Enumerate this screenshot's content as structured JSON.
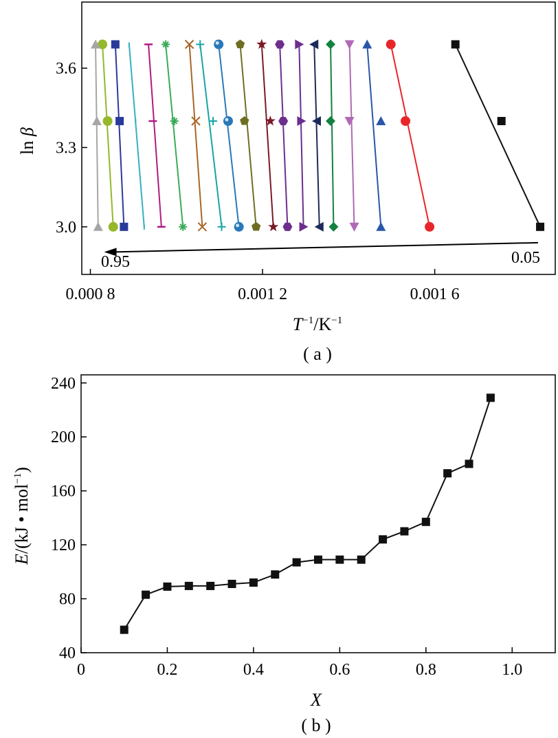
{
  "chart_data": [
    {
      "type": "line",
      "caption": "( a )",
      "xlabel": "T⁻¹/K⁻¹",
      "ylabel": "ln β",
      "x_tick_values": [
        0.0008,
        0.0012,
        0.0016
      ],
      "x_tick_labels": [
        "0.000 8",
        "0.001 2",
        "0.001 6"
      ],
      "y_tick_values": [
        3.0,
        3.3,
        3.6
      ],
      "y_tick_labels": [
        "3.0",
        "3.3",
        "3.6"
      ],
      "xlim": [
        0.00078,
        0.00188
      ],
      "ylim": [
        2.82,
        3.85
      ],
      "y_levels": [
        3.0,
        3.4,
        3.69
      ],
      "arrow": {
        "from_label": "0.05",
        "to_label": "0.95"
      },
      "series": [
        {
          "x_at_levels": [
            0.001845,
            0.001755,
            0.001648
          ],
          "color": "#111111",
          "marker": "square"
        },
        {
          "x_at_levels": [
            0.001588,
            0.001532,
            0.001498
          ],
          "color": "#e8262a",
          "marker": "circle"
        },
        {
          "x_at_levels": [
            0.001475,
            0.001475,
            0.001443
          ],
          "color": "#2a56a8",
          "marker": "triangle-up"
        },
        {
          "x_at_levels": [
            0.001413,
            0.001402,
            0.001402
          ],
          "color": "#b069b4",
          "marker": "triangle-down"
        },
        {
          "x_at_levels": [
            0.001365,
            0.001358,
            0.001358
          ],
          "color": "#12823e",
          "marker": "diamond"
        },
        {
          "x_at_levels": [
            0.001332,
            0.001326,
            0.00132
          ],
          "color": "#1c2a5a",
          "marker": "triangle-left"
        },
        {
          "x_at_levels": [
            0.001295,
            0.00129,
            0.001285
          ],
          "color": "#6a2e8e",
          "marker": "triangle-right"
        },
        {
          "x_at_levels": [
            0.001258,
            0.001248,
            0.00124
          ],
          "color": "#6d2e8c",
          "marker": "hexagon"
        },
        {
          "x_at_levels": [
            0.001225,
            0.001218,
            0.001198
          ],
          "color": "#7a1a26",
          "marker": "star"
        },
        {
          "x_at_levels": [
            0.001185,
            0.001158,
            0.001148
          ],
          "color": "#6e6e22",
          "marker": "pentagon"
        },
        {
          "x_at_levels": [
            0.001145,
            0.00112,
            0.001098
          ],
          "color": "#2a78b8",
          "marker": "sphere"
        },
        {
          "x_at_levels": [
            0.001105,
            0.001085,
            0.001055
          ],
          "color": "#17a4a4",
          "marker": "plus"
        },
        {
          "x_at_levels": [
            0.00106,
            0.001045,
            0.00103
          ],
          "color": "#a86628",
          "marker": "x"
        },
        {
          "x_at_levels": [
            0.001015,
            0.000995,
            0.000975
          ],
          "color": "#3aac58",
          "marker": "asterisk"
        },
        {
          "x_at_levels": [
            0.000965,
            0.000945,
            0.000935
          ],
          "color": "#b01a82",
          "marker": "dash"
        },
        {
          "x_at_levels": [
            0.000925,
            0.000905,
            0.00089
          ],
          "color": "#35b0c0",
          "marker": "vline"
        },
        {
          "x_at_levels": [
            0.000878,
            0.000868,
            0.000858
          ],
          "color": "#2a3a9a",
          "marker": "square"
        },
        {
          "x_at_levels": [
            0.000853,
            0.00084,
            0.000828
          ],
          "color": "#94b82a",
          "marker": "circle"
        },
        {
          "x_at_levels": [
            0.000818,
            0.000815,
            0.000812
          ],
          "color": "#a6a6a6",
          "marker": "triangle-up"
        }
      ]
    },
    {
      "type": "line",
      "caption": "( b )",
      "xlabel": "X",
      "ylabel": "E/(kJ • mol⁻¹)",
      "x_tick_values": [
        0,
        0.2,
        0.4,
        0.6,
        0.8,
        1.0
      ],
      "x_tick_labels": [
        "0",
        "0.2",
        "0.4",
        "0.6",
        "0.8",
        "1.0"
      ],
      "y_tick_values": [
        40,
        80,
        120,
        160,
        200,
        240
      ],
      "y_tick_labels": [
        "40",
        "80",
        "120",
        "160",
        "200",
        "240"
      ],
      "xlim": [
        0,
        1.1
      ],
      "ylim": [
        40,
        246
      ],
      "series": [
        {
          "x": [
            0.1,
            0.15,
            0.2,
            0.25,
            0.3,
            0.35,
            0.4,
            0.45,
            0.5,
            0.55,
            0.6,
            0.65,
            0.7,
            0.75,
            0.8,
            0.85,
            0.9,
            0.95
          ],
          "y": [
            57,
            83,
            89,
            89.5,
            89.5,
            91,
            92,
            98,
            107,
            109,
            109,
            109,
            124,
            130,
            137,
            173,
            180,
            229
          ],
          "color": "#111111",
          "marker": "square"
        }
      ]
    }
  ]
}
